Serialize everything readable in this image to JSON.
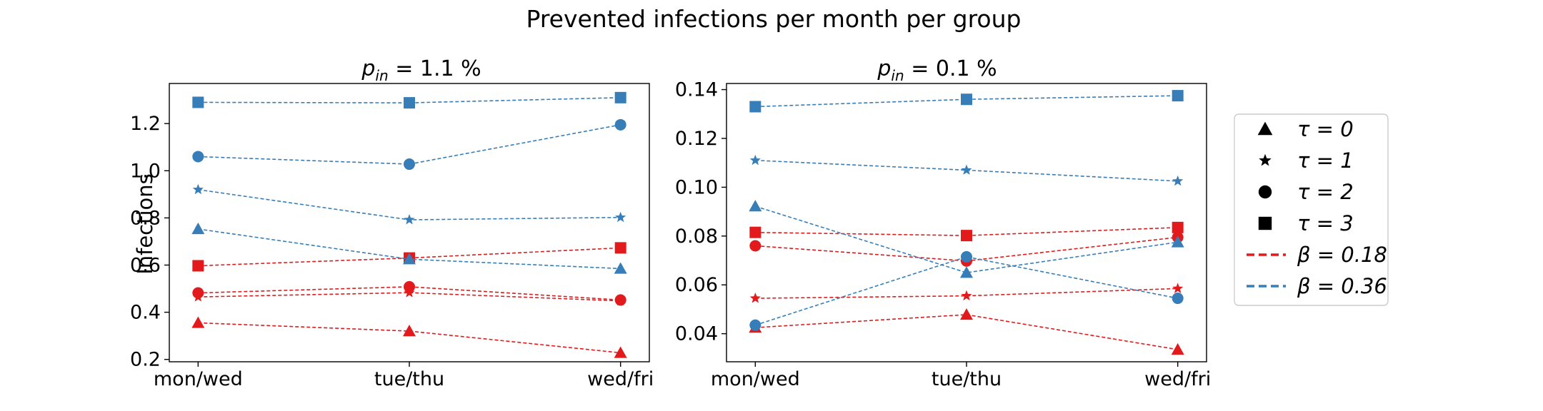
{
  "figure": {
    "suptitle": "Prevented infections per month per group"
  },
  "legend": {
    "placement": "right",
    "entries": [
      {
        "marker": "triangle",
        "label": "τ = 0"
      },
      {
        "marker": "star",
        "label": "τ = 1"
      },
      {
        "marker": "circle",
        "label": "τ = 2"
      },
      {
        "marker": "square",
        "label": "τ = 3"
      },
      {
        "line": "dashed",
        "color": "#e31a1c",
        "label": "β = 0.18"
      },
      {
        "line": "dashed",
        "color": "#377eb8",
        "label": "β = 0.36"
      }
    ]
  },
  "colors": {
    "beta_018": "#e31a1c",
    "beta_036": "#377eb8"
  },
  "chart_data": [
    {
      "type": "line",
      "title_math": "p",
      "title_sub": "in",
      "title_rest": " = 1.1 %",
      "xlabel": "",
      "ylabel": "Infections",
      "categories": [
        "mon/wed",
        "tue/thu",
        "wed/fri"
      ],
      "ylim": [
        0.19,
        1.37
      ],
      "yticks": [
        "0.2",
        "0.4",
        "0.6",
        "0.8",
        "1.0",
        "1.2"
      ],
      "series": [
        {
          "beta": "0.18",
          "tau": 0,
          "color": "#e31a1c",
          "values": [
            0.355,
            0.32,
            0.228
          ]
        },
        {
          "beta": "0.18",
          "tau": 1,
          "color": "#e31a1c",
          "values": [
            0.465,
            0.483,
            0.448
          ]
        },
        {
          "beta": "0.18",
          "tau": 2,
          "color": "#e31a1c",
          "values": [
            0.482,
            0.508,
            0.452
          ]
        },
        {
          "beta": "0.18",
          "tau": 3,
          "color": "#e31a1c",
          "values": [
            0.597,
            0.63,
            0.673
          ]
        },
        {
          "beta": "0.36",
          "tau": 0,
          "color": "#377eb8",
          "values": [
            0.753,
            0.625,
            0.585
          ]
        },
        {
          "beta": "0.36",
          "tau": 1,
          "color": "#377eb8",
          "values": [
            0.92,
            0.792,
            0.802
          ]
        },
        {
          "beta": "0.36",
          "tau": 2,
          "color": "#377eb8",
          "values": [
            1.06,
            1.028,
            1.195
          ]
        },
        {
          "beta": "0.36",
          "tau": 3,
          "color": "#377eb8",
          "values": [
            1.29,
            1.288,
            1.31
          ]
        }
      ]
    },
    {
      "type": "line",
      "title_math": "p",
      "title_sub": "in",
      "title_rest": " = 0.1 %",
      "xlabel": "",
      "ylabel": "",
      "categories": [
        "mon/wed",
        "tue/thu",
        "wed/fri"
      ],
      "ylim": [
        0.0285,
        0.1425
      ],
      "yticks": [
        "0.04",
        "0.06",
        "0.08",
        "0.10",
        "0.12",
        "0.14"
      ],
      "series": [
        {
          "beta": "0.18",
          "tau": 0,
          "color": "#e31a1c",
          "values": [
            0.0425,
            0.0478,
            0.0335
          ]
        },
        {
          "beta": "0.18",
          "tau": 1,
          "color": "#e31a1c",
          "values": [
            0.0545,
            0.0555,
            0.0585
          ]
        },
        {
          "beta": "0.18",
          "tau": 2,
          "color": "#e31a1c",
          "values": [
            0.076,
            0.0698,
            0.0795
          ]
        },
        {
          "beta": "0.18",
          "tau": 3,
          "color": "#e31a1c",
          "values": [
            0.0815,
            0.0802,
            0.0835
          ]
        },
        {
          "beta": "0.36",
          "tau": 0,
          "color": "#377eb8",
          "values": [
            0.0922,
            0.065,
            0.0775
          ]
        },
        {
          "beta": "0.36",
          "tau": 1,
          "color": "#377eb8",
          "values": [
            0.111,
            0.107,
            0.1025
          ]
        },
        {
          "beta": "0.36",
          "tau": 2,
          "color": "#377eb8",
          "values": [
            0.0435,
            0.0715,
            0.0545
          ]
        },
        {
          "beta": "0.36",
          "tau": 3,
          "color": "#377eb8",
          "values": [
            0.133,
            0.136,
            0.1375
          ]
        }
      ]
    }
  ]
}
